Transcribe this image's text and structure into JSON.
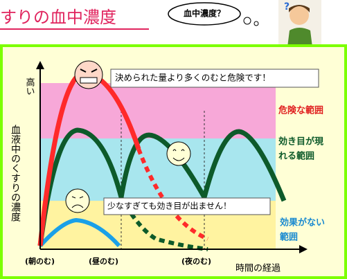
{
  "header": {
    "title": "すりの血中濃度",
    "thought": "血中濃度？"
  },
  "diagram": {
    "y_axis_top": "高い",
    "y_axis_label": "血液中のくすりの濃度",
    "x_axis_label": "時間の経過",
    "doses": [
      "(朝のむ)",
      "(昼のむ)",
      "(夜のむ)"
    ],
    "zones": [
      {
        "lines": [
          "危険な範囲"
        ]
      },
      {
        "lines": [
          "効き目が現",
          "れる範囲"
        ]
      },
      {
        "lines": [
          "効果がない",
          "範囲"
        ]
      }
    ],
    "callouts": [
      "決められた量より多くのむと危険です！",
      "少なすぎても効き目が出ません！"
    ]
  }
}
